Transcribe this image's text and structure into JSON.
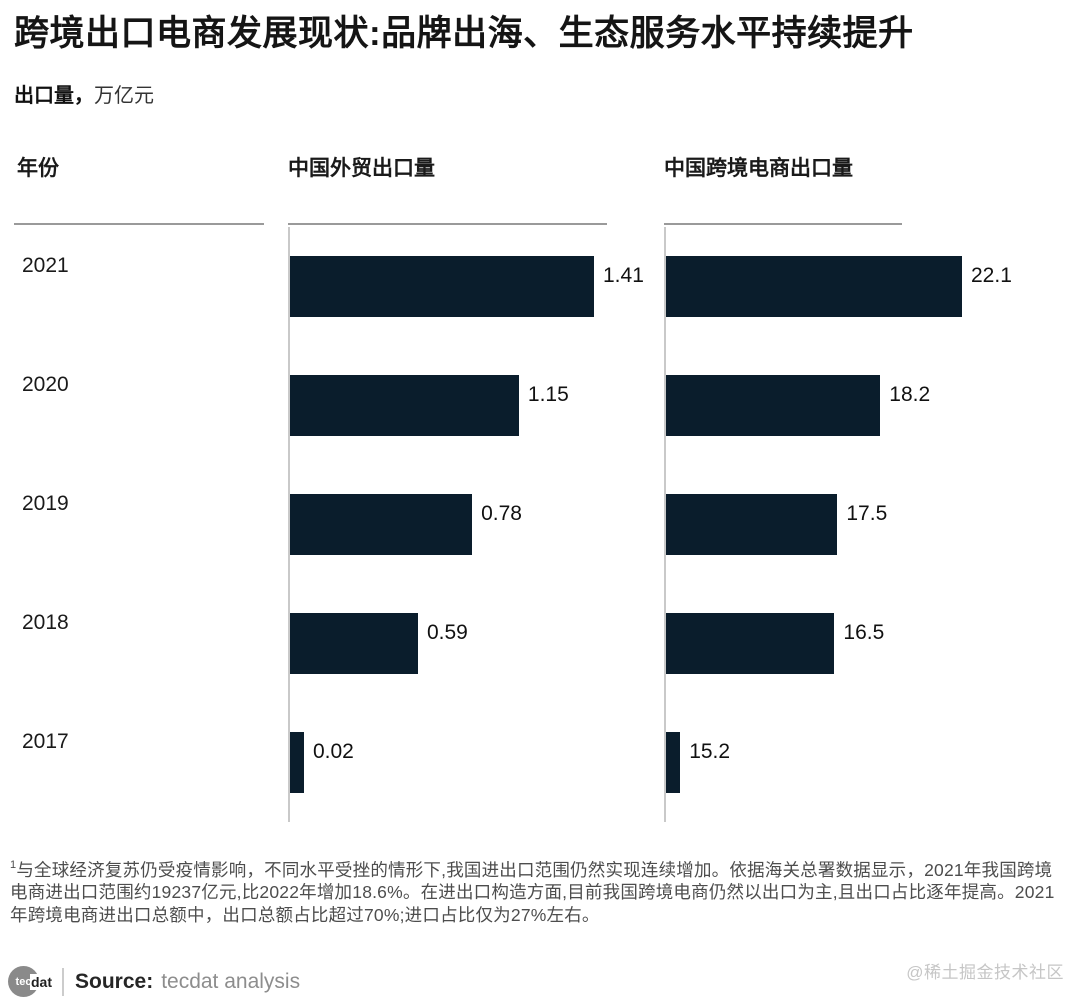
{
  "page": {
    "title": "跨境出口电商发展现状:品牌出海、生态服务水平持续提升",
    "subtitle_bold": "出口量，",
    "subtitle_rest": "万亿元"
  },
  "chart_data": {
    "type": "bar",
    "orientation": "horizontal",
    "unit": "万亿元",
    "title": "出口量，万亿元",
    "categories": [
      "2021",
      "2020",
      "2019",
      "2018",
      "2017"
    ],
    "col_headers": {
      "year": "年份",
      "series1": "中国外贸出口量",
      "series2": "中国跨境电商出口量"
    },
    "series": [
      {
        "name": "中国外贸出口量",
        "values": [
          1.41,
          1.15,
          0.78,
          0.59,
          0.02
        ],
        "labels": [
          "1.41",
          "1.15",
          "0.78",
          "0.59",
          "0.02"
        ],
        "bar_pct": [
          "100%",
          "75.3%",
          "59.9%",
          "42.1%",
          "4.6%"
        ]
      },
      {
        "name": "中国跨境电商出口量",
        "values": [
          22.1,
          18.2,
          17.5,
          16.5,
          15.2
        ],
        "labels": [
          "22.1",
          "18.2",
          "17.5",
          "16.5",
          "15.2"
        ],
        "bar_pct": [
          "100%",
          "72.4%",
          "57.9%",
          "56.9%",
          "4.8%"
        ]
      }
    ],
    "bar_color": "#0a1d2c",
    "rule_color": "#9a9a9a",
    "axis_color": "#c9c9c9",
    "gridlines": false,
    "legend": "none",
    "value_labels": "end-of-bar"
  },
  "footnote": {
    "sup": "1",
    "text": "与全球经济复苏仍受疫情影响，不同水平受挫的情形下,我国进出口范围仍然实现连续增加。依据海关总署数据显示，2021年我国跨境电商进出口范围约19237亿元,比2022年增加18.6%。在进出口构造方面,目前我国跨境电商仍然以出口为主,且出口占比逐年提高。2021年跨境电商进出口总额中，出口总额占比超过70%;进口占比仅为27%左右。"
  },
  "footer": {
    "logo_circle_text": "tec",
    "logo_rest_text": "dat",
    "source_label": "Source:",
    "source_value": "tecdat analysis",
    "watermark": "@稀土掘金技术社区"
  }
}
